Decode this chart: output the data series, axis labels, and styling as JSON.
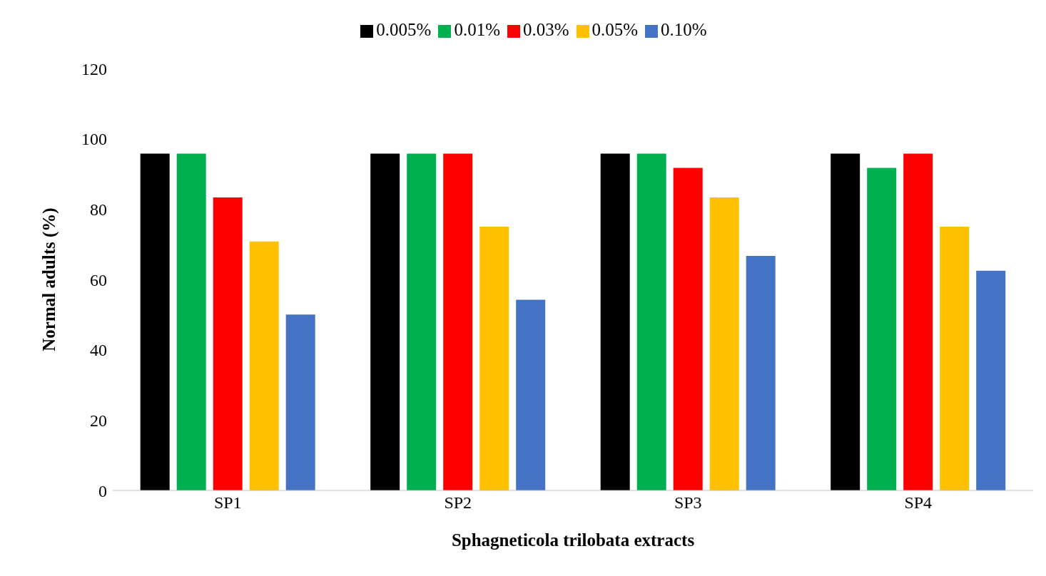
{
  "chart_data": {
    "type": "bar",
    "xlabel": "Sphagneticola trilobata extracts",
    "ylabel": "Normal adults (%)",
    "categories": [
      "SP1",
      "SP2",
      "SP3",
      "SP4"
    ],
    "series": [
      {
        "name": "0.005%",
        "color": "#000000",
        "values": [
          95.8,
          95.8,
          95.8,
          95.8
        ]
      },
      {
        "name": "0.01%",
        "color": "#00b050",
        "values": [
          95.8,
          95.8,
          95.8,
          91.7
        ]
      },
      {
        "name": "0.03%",
        "color": "#ff0000",
        "values": [
          83.3,
          95.8,
          91.7,
          95.8
        ]
      },
      {
        "name": "0.05%",
        "color": "#ffc000",
        "values": [
          70.8,
          75,
          83.3,
          75
        ]
      },
      {
        "name": "0.10%",
        "color": "#4472c4",
        "values": [
          50,
          54.2,
          66.7,
          62.5
        ]
      }
    ],
    "ylim": [
      0,
      120
    ],
    "yticks": [
      0,
      20,
      40,
      60,
      80,
      100,
      120
    ],
    "grid": false,
    "legend": "top"
  }
}
